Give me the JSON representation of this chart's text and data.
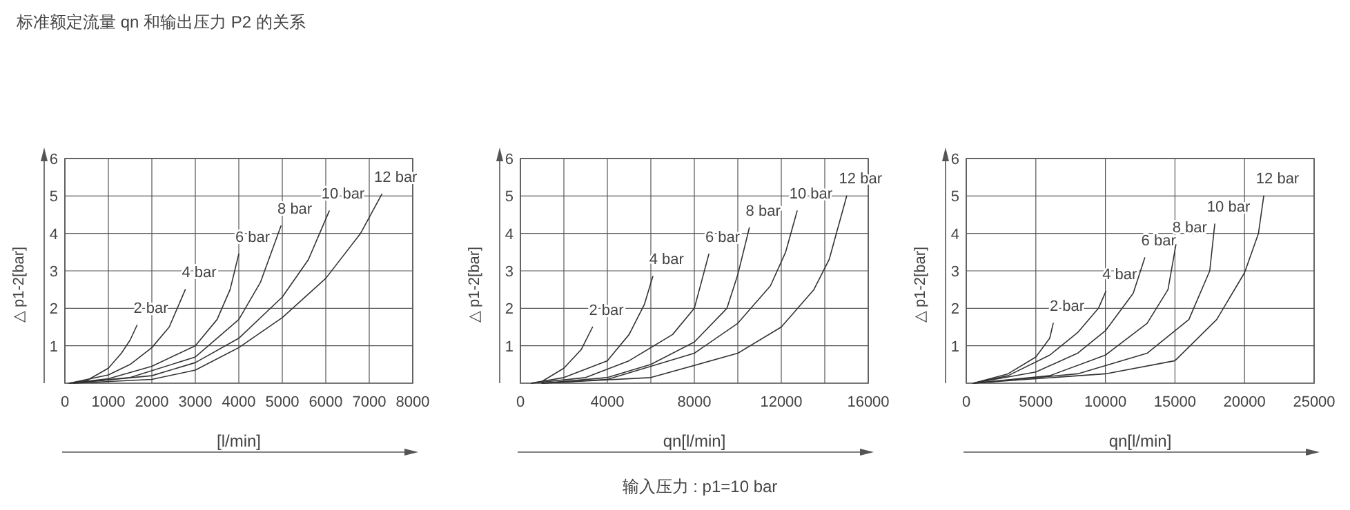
{
  "chart_data": [
    {
      "type": "line",
      "annotations": [
        "标准额定流量 qn 和输出压力 P2 的关系"
      ],
      "xlabel": "[l/min]",
      "ylabel": "△ p1-2[bar]",
      "xlim": [
        0,
        8000
      ],
      "ylim": [
        0,
        6
      ],
      "xticks": [
        0,
        1000,
        2000,
        3000,
        4000,
        5000,
        6000,
        7000,
        8000
      ],
      "yticks": [
        1,
        2,
        3,
        4,
        5,
        6
      ],
      "grid": true,
      "legend": false,
      "marker": "none",
      "line_style": "solid",
      "series": [
        {
          "name": "2 bar",
          "color": "#333333",
          "x": [
            100,
            500,
            1000,
            1300,
            1500,
            1660
          ],
          "values": [
            0,
            0.07,
            0.4,
            0.8,
            1.15,
            1.55
          ]
        },
        {
          "name": "4 bar",
          "color": "#333333",
          "x": [
            100,
            1000,
            1500,
            2000,
            2400,
            2770
          ],
          "values": [
            0,
            0.22,
            0.5,
            0.95,
            1.5,
            2.5
          ]
        },
        {
          "name": "6 bar",
          "color": "#333333",
          "x": [
            100,
            1000,
            2000,
            3000,
            3500,
            3800,
            4000
          ],
          "values": [
            0,
            0.12,
            0.45,
            1.0,
            1.7,
            2.5,
            3.45
          ]
        },
        {
          "name": "8 bar",
          "color": "#333333",
          "x": [
            100,
            1500,
            3000,
            4000,
            4500,
            4970
          ],
          "values": [
            0,
            0.15,
            0.7,
            1.7,
            2.7,
            4.2
          ]
        },
        {
          "name": "10 bar",
          "color": "#333333",
          "x": [
            200,
            2000,
            3000,
            4000,
            5000,
            5600,
            6080
          ],
          "values": [
            0,
            0.2,
            0.55,
            1.2,
            2.3,
            3.3,
            4.6
          ]
        },
        {
          "name": "12 bar",
          "color": "#333333",
          "x": [
            200,
            2000,
            3000,
            4000,
            5000,
            6000,
            6800,
            7290
          ],
          "values": [
            0,
            0.1,
            0.35,
            0.95,
            1.75,
            2.8,
            4.0,
            5.05
          ]
        }
      ]
    },
    {
      "type": "line",
      "annotations": [
        "输入压力 : p1=10 bar"
      ],
      "xlabel": "qn[l/min]",
      "ylabel": "△ p1-2[bar]",
      "xlim": [
        0,
        16000
      ],
      "ylim": [
        0,
        6
      ],
      "xticks": [
        0,
        {
          "value": 2000,
          "label": null
        },
        4000,
        {
          "value": 6000,
          "label": null
        },
        8000,
        {
          "value": 10000,
          "label": null
        },
        12000,
        {
          "value": 14000,
          "label": null
        },
        16000
      ],
      "yticks": [
        1,
        2,
        3,
        4,
        5,
        6
      ],
      "grid": true,
      "legend": false,
      "marker": "none",
      "line_style": "solid",
      "series": [
        {
          "name": "2 bar",
          "color": "#333333",
          "x": [
            500,
            1000,
            2000,
            2800,
            3320
          ],
          "values": [
            0,
            0.05,
            0.4,
            0.9,
            1.5
          ]
        },
        {
          "name": "4 bar",
          "color": "#333333",
          "x": [
            500,
            2000,
            4000,
            5000,
            5700,
            6090
          ],
          "values": [
            0,
            0.15,
            0.6,
            1.3,
            2.1,
            2.85
          ]
        },
        {
          "name": "6 bar",
          "color": "#333333",
          "x": [
            500,
            3000,
            5000,
            7000,
            8000,
            8670
          ],
          "values": [
            0,
            0.15,
            0.6,
            1.3,
            2.0,
            3.45
          ]
        },
        {
          "name": "8 bar",
          "color": "#333333",
          "x": [
            1000,
            4000,
            6000,
            8000,
            9500,
            10000,
            10530
          ],
          "values": [
            0,
            0.15,
            0.5,
            1.1,
            2.0,
            2.9,
            4.15
          ]
        },
        {
          "name": "10 bar",
          "color": "#333333",
          "x": [
            1000,
            4000,
            8000,
            10000,
            11500,
            12200,
            12730
          ],
          "values": [
            0,
            0.1,
            0.8,
            1.6,
            2.6,
            3.5,
            4.6
          ]
        },
        {
          "name": "12 bar",
          "color": "#333333",
          "x": [
            1000,
            6000,
            10000,
            12000,
            13500,
            14200,
            15010
          ],
          "values": [
            0,
            0.15,
            0.8,
            1.5,
            2.5,
            3.3,
            5.0
          ]
        }
      ]
    },
    {
      "type": "line",
      "xlabel": "qn[l/min]",
      "ylabel": "△ p1-2[bar]",
      "xlim": [
        0,
        25000
      ],
      "ylim": [
        0,
        6
      ],
      "xticks": [
        0,
        5000,
        10000,
        15000,
        20000,
        25000
      ],
      "yticks": [
        1,
        2,
        3,
        4,
        5,
        6
      ],
      "grid": true,
      "legend": false,
      "marker": "none",
      "line_style": "solid",
      "series": [
        {
          "name": "2 bar",
          "color": "#333333",
          "x": [
            500,
            3000,
            5000,
            6000,
            6250
          ],
          "values": [
            0,
            0.25,
            0.7,
            1.2,
            1.6
          ]
        },
        {
          "name": "4 bar",
          "color": "#333333",
          "x": [
            500,
            3000,
            6000,
            8000,
            9500,
            10030
          ],
          "values": [
            0,
            0.2,
            0.75,
            1.35,
            2.0,
            2.45
          ]
        },
        {
          "name": "6 bar",
          "color": "#333333",
          "x": [
            500,
            5000,
            8000,
            10000,
            12000,
            12830
          ],
          "values": [
            0,
            0.3,
            0.8,
            1.4,
            2.4,
            3.35
          ]
        },
        {
          "name": "8 bar",
          "color": "#333333",
          "x": [
            500,
            6000,
            10000,
            13000,
            14500,
            15070
          ],
          "values": [
            0,
            0.2,
            0.75,
            1.6,
            2.5,
            3.7
          ]
        },
        {
          "name": "10 bar",
          "color": "#333333",
          "x": [
            500,
            8000,
            13000,
            16000,
            17500,
            17860
          ],
          "values": [
            0,
            0.25,
            0.8,
            1.7,
            3.0,
            4.25
          ]
        },
        {
          "name": "12 bar",
          "color": "#333333",
          "x": [
            500,
            10000,
            15000,
            18000,
            20000,
            21000,
            21380
          ],
          "values": [
            0,
            0.25,
            0.6,
            1.7,
            2.95,
            4.0,
            5.0
          ]
        }
      ]
    }
  ]
}
